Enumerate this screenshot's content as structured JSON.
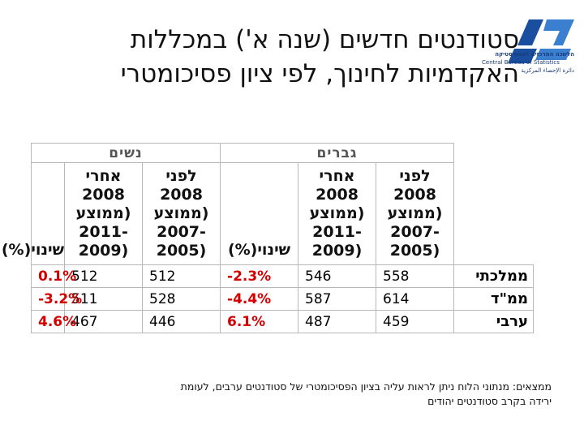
{
  "title": {
    "line1": "סטודנטים חדשים (שנה א') במכללות",
    "line2": "האקדמיות לחינוך, לפי ציון פסיכומטרי"
  },
  "logo": {
    "hebrew": "הלשכה המרכזית לסטטיסטיקה",
    "english": "Central Bureau of Statistics",
    "arabic": "دائرة الإحصاء المركزية",
    "colors": {
      "primary": "#1a4fa0",
      "secondary": "#3a7fd0"
    }
  },
  "table": {
    "groups": {
      "men": "גברים",
      "women": "נשים"
    },
    "col_before": [
      "לפני 2008",
      "(ממוצע",
      "-2007",
      "(2005"
    ],
    "col_after": [
      "אחרי",
      "2008",
      "(ממוצע",
      "-2011",
      "(2009"
    ],
    "col_change": "שינוי(%)",
    "rows": [
      {
        "label": "ממלכתי",
        "men_before": "558",
        "men_after": "546",
        "men_change": "-2.3%",
        "women_before": "512",
        "women_after": "512",
        "women_change": "0.1%"
      },
      {
        "label": "ממ\"ד",
        "men_before": "614",
        "men_after": "587",
        "men_change": "-4.4%",
        "women_before": "528",
        "women_after": "511",
        "women_change": "-3.2%"
      },
      {
        "label": "ערבי",
        "men_before": "459",
        "men_after": "487",
        "men_change": "6.1%",
        "women_before": "446",
        "women_after": "467",
        "women_change": "4.6%"
      }
    ],
    "colors": {
      "change": "#d40000",
      "grid": "#b8b8b8"
    }
  },
  "note": {
    "line1": "ממצאים: מנתוני הלוח ניתן לראות עליה בציון הפסיכומטרי של סטודנטים ערבים, לעומת",
    "line2": "ירידה בקרב סטודנטים יהודים"
  }
}
